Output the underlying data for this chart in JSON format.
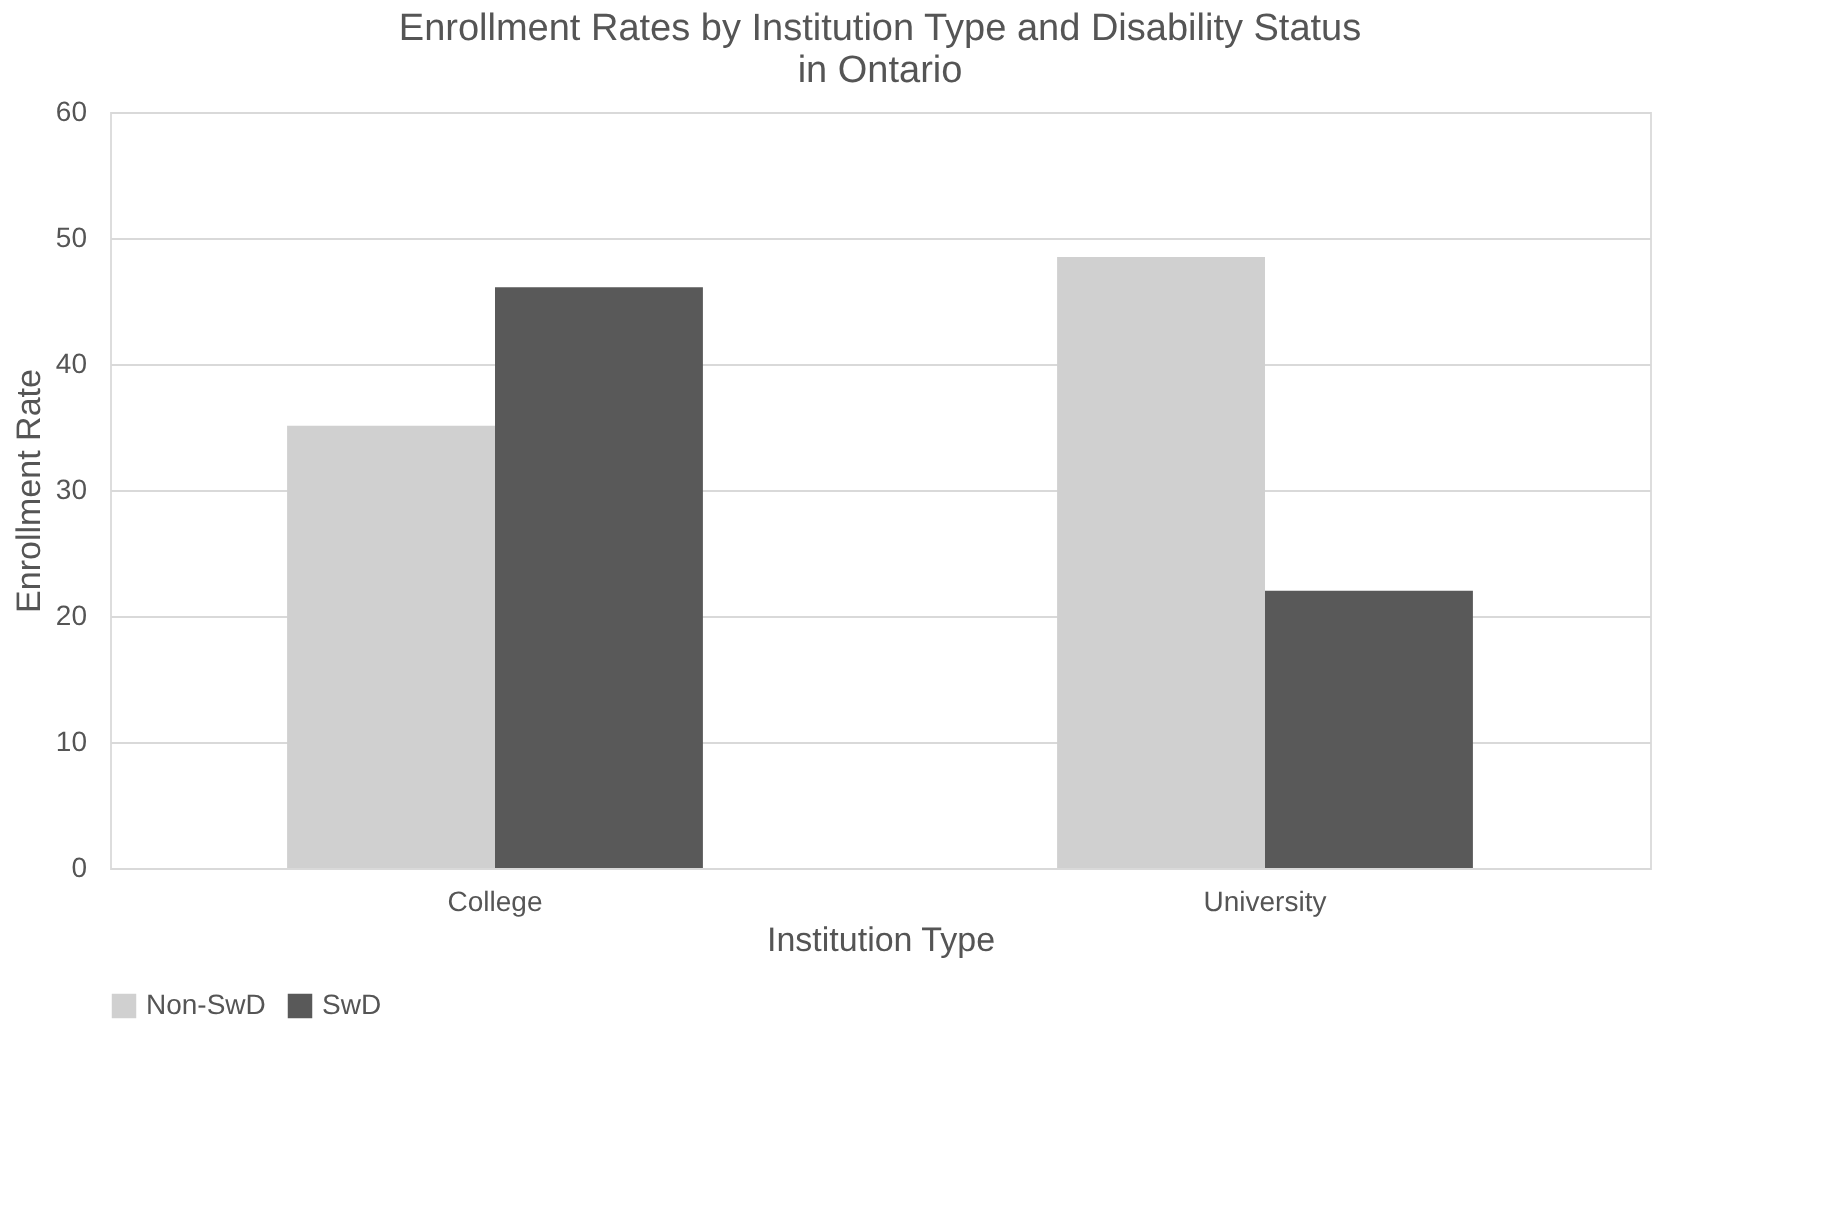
{
  "chart_data": {
    "type": "bar",
    "title": "Enrollment Rates by Institution Type and Disability Status in Ontario",
    "xlabel": "Institution Type",
    "ylabel": "Enrollment Rate",
    "categories": [
      "College",
      "University"
    ],
    "series": [
      {
        "name": "Non-SwD",
        "color": "#d0d0d0",
        "values": [
          35.1,
          48.5
        ]
      },
      {
        "name": "SwD",
        "color": "#595959",
        "values": [
          46.1,
          22.0
        ]
      }
    ],
    "ylim": [
      0,
      60
    ],
    "yticks": [
      0,
      10,
      20,
      30,
      40,
      50,
      60
    ],
    "grid": "y",
    "legend": "bottom"
  }
}
